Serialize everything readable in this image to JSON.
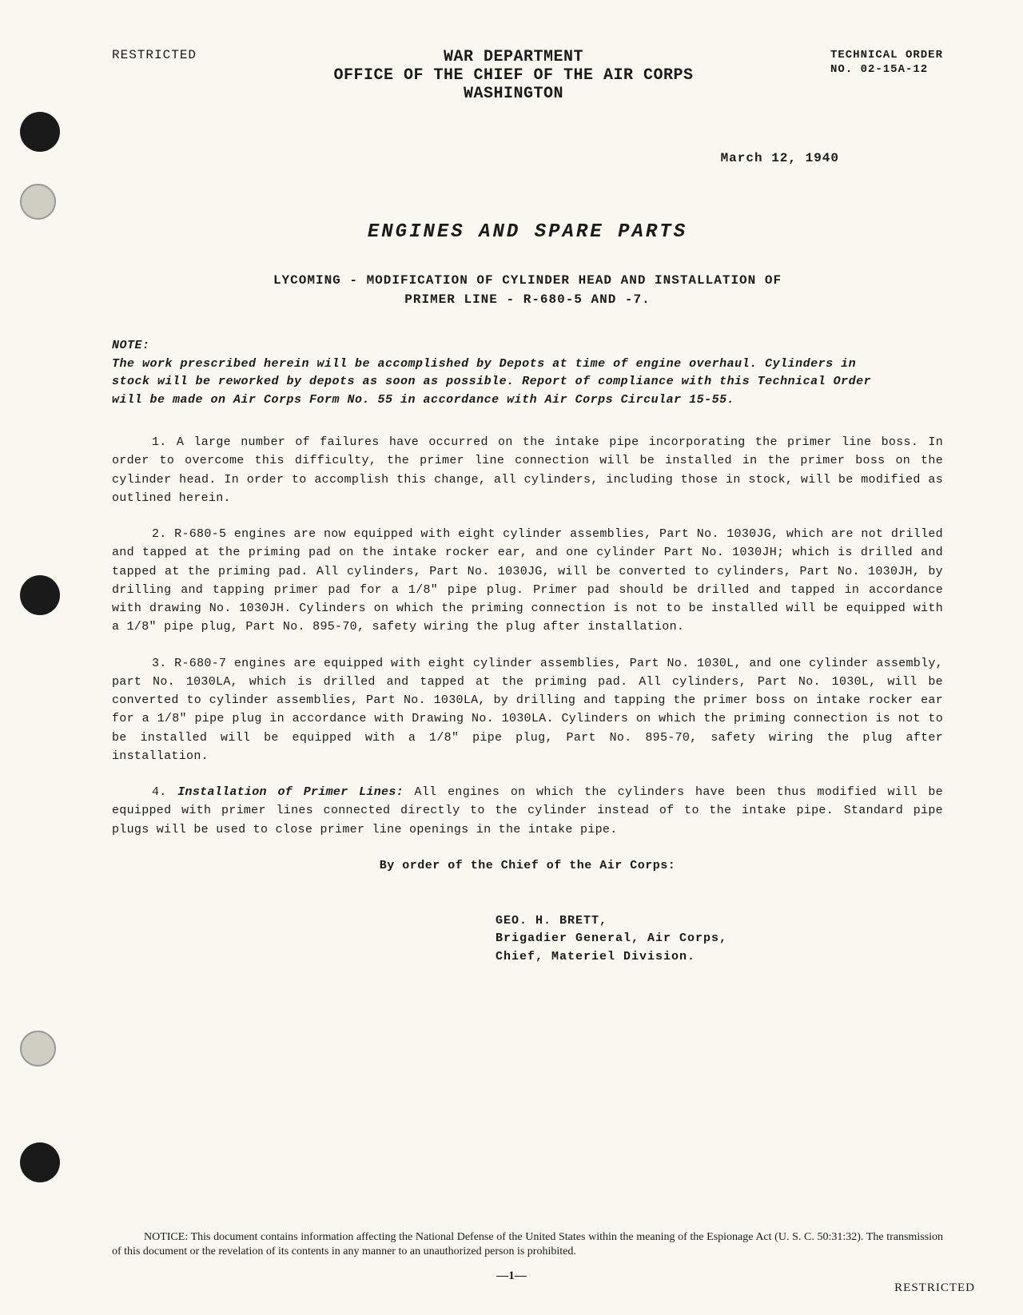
{
  "header": {
    "restricted": "RESTRICTED",
    "dept_line1": "WAR DEPARTMENT",
    "dept_line2": "OFFICE OF THE CHIEF OF THE AIR CORPS",
    "dept_line3": "WASHINGTON",
    "tech_order_label": "TECHNICAL ORDER",
    "tech_order_no": "NO. 02-15A-12",
    "date": "March 12, 1940"
  },
  "title": {
    "main": "ENGINES AND SPARE PARTS",
    "sub_line1": "LYCOMING - MODIFICATION OF CYLINDER HEAD AND INSTALLATION OF",
    "sub_line2": "PRIMER LINE - R-680-5 AND -7."
  },
  "note": {
    "label": "NOTE:",
    "body": "The work prescribed herein will be accomplished by Depots at time of engine overhaul. Cylinders in stock will be reworked by depots as soon as possible. Report of compliance with this Technical Order will be made on Air Corps Form No. 55 in accordance with Air Corps Circular 15-55."
  },
  "paragraphs": {
    "p1": "1. A large number of failures have occurred on the intake pipe incorporating the primer line boss. In order to overcome this difficulty, the primer line connection will be installed in the primer boss on the cylinder head. In order to accomplish this change, all cylinders, including those in stock, will be modified as outlined herein.",
    "p2": "2. R-680-5 engines are now equipped with eight cylinder assemblies, Part No. 1030JG, which are not drilled and tapped at the priming pad on the intake rocker ear, and one cylinder Part No. 1030JH; which is drilled and tapped at the priming pad. All cylinders, Part No. 1030JG, will be converted to cylinders, Part No. 1030JH, by drilling and tapping primer pad for a 1/8\" pipe plug. Primer pad should be drilled and tapped in accordance with drawing No. 1030JH. Cylinders on which the priming connection is not to be installed will be equipped with a 1/8\" pipe plug, Part No. 895-70, safety wiring the plug after installation.",
    "p3": "3. R-680-7 engines are equipped with eight cylinder assemblies, Part No. 1030L, and one cylinder assembly, part No. 1030LA, which is drilled and tapped at the priming pad. All cylinders, Part No. 1030L, will be converted to cylinder assemblies, Part No. 1030LA, by drilling and tapping the primer boss on intake rocker ear for a 1/8\" pipe plug in accordance with Drawing No. 1030LA. Cylinders on which the priming connection is not to be installed will be equipped with a 1/8\" pipe plug, Part No. 895-70, safety wiring the plug after installation.",
    "p4_num": "4.",
    "p4_title": "Installation of Primer Lines:",
    "p4_body": " All engines on which the cylinders have been thus modified will be equipped with primer lines connected directly to the cylinder instead of to the intake pipe. Standard pipe plugs will be used to close primer line openings in the intake pipe."
  },
  "order": {
    "by_order": "By order of the Chief of the Air Corps:",
    "sig_name": "GEO. H. BRETT,",
    "sig_rank": "Brigadier General, Air Corps,",
    "sig_title": "Chief, Materiel Division."
  },
  "notice": {
    "text": "NOTICE: This document contains information affecting the National Defense of the United States within the meaning of the Espionage Act (U. S. C. 50:31:32). The transmission of this document or the revelation of its contents in any manner to an unauthorized person is prohibited."
  },
  "footer": {
    "page_number": "—1—",
    "restricted": "RESTRICTED"
  },
  "styling": {
    "background_color": "#faf7f0",
    "text_color": "#1a1a1a",
    "body_font": "Courier New",
    "notice_font": "Georgia",
    "title_fontsize": 24,
    "subtitle_fontsize": 16,
    "body_fontsize": 15,
    "notice_fontsize": 14
  }
}
